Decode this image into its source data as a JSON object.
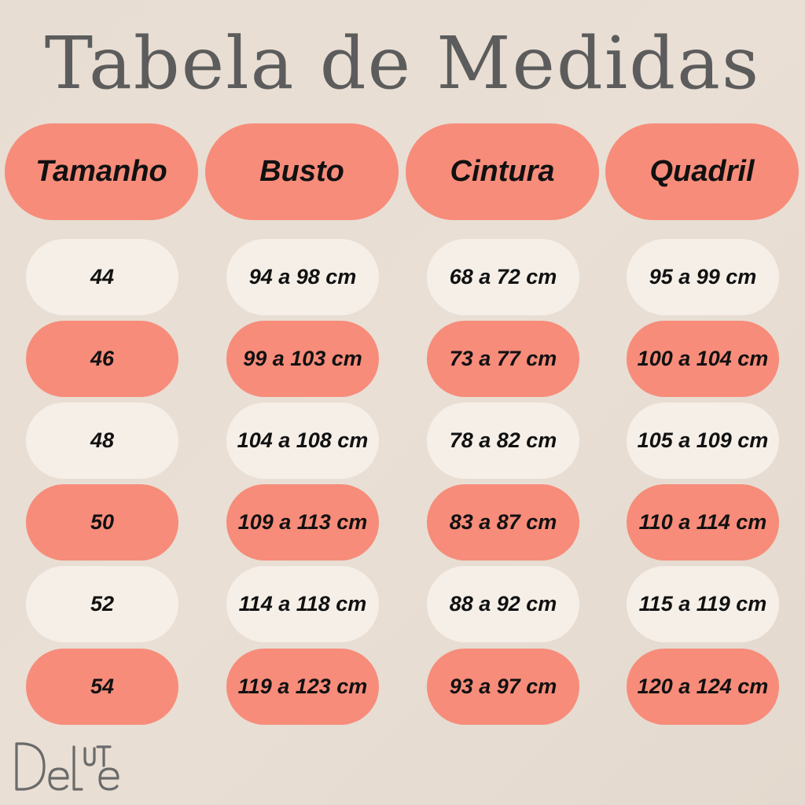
{
  "title": "Tabela de Medidas",
  "headers": [
    "Tamanho",
    "Busto",
    "Cintura",
    "Quadril"
  ],
  "rows": [
    [
      "44",
      "94 a 98 cm",
      "68 a 72 cm",
      "95 a 99 cm"
    ],
    [
      "46",
      "99 a 103 cm",
      "73 a 77 cm",
      "100 a 104 cm"
    ],
    [
      "48",
      "104 a 108 cm",
      "78 a 82 cm",
      "105 a 109 cm"
    ],
    [
      "50",
      "109 a 113 cm",
      "83 a 87 cm",
      "110 a 114 cm"
    ],
    [
      "52",
      "114 a 118 cm",
      "88 a 92 cm",
      "115 a 119 cm"
    ],
    [
      "54",
      "119 a 123 cm",
      "93 a 97 cm",
      "120 a 124 cm"
    ]
  ],
  "logo": "DeLuTe",
  "colors": {
    "coral": "#f78c7a",
    "light": "#f5efe8",
    "title": "#5c5c5c",
    "background": "#e8ded3"
  }
}
